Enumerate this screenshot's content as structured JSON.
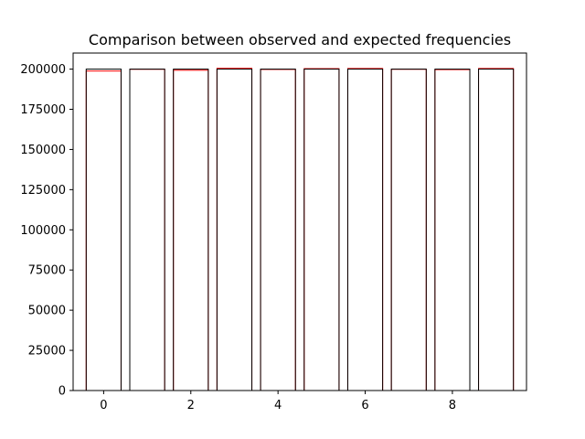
{
  "chart_data": {
    "type": "bar",
    "title": "Comparison between observed and expected frequencies",
    "xlabel": "",
    "ylabel": "",
    "categories": [
      0,
      1,
      2,
      3,
      4,
      5,
      6,
      7,
      8,
      9
    ],
    "series": [
      {
        "style": "observed",
        "color": "#ff0000",
        "values": [
          198800,
          199900,
          199300,
          200500,
          199800,
          200300,
          200400,
          199900,
          199700,
          200400
        ]
      },
      {
        "style": "expected",
        "color": "#000000",
        "values": [
          200000,
          200000,
          200000,
          200000,
          200000,
          200000,
          200000,
          200000,
          200000,
          200000
        ]
      }
    ],
    "xlim": [
      -0.7,
      9.7
    ],
    "ylim": [
      0,
      210000
    ],
    "xticks": [
      0,
      2,
      4,
      6,
      8
    ],
    "yticks": [
      0,
      25000,
      50000,
      75000,
      100000,
      125000,
      150000,
      175000,
      200000
    ],
    "bar_width": 0.8,
    "fill": "#ffffff",
    "grid": false,
    "legend": "none"
  }
}
